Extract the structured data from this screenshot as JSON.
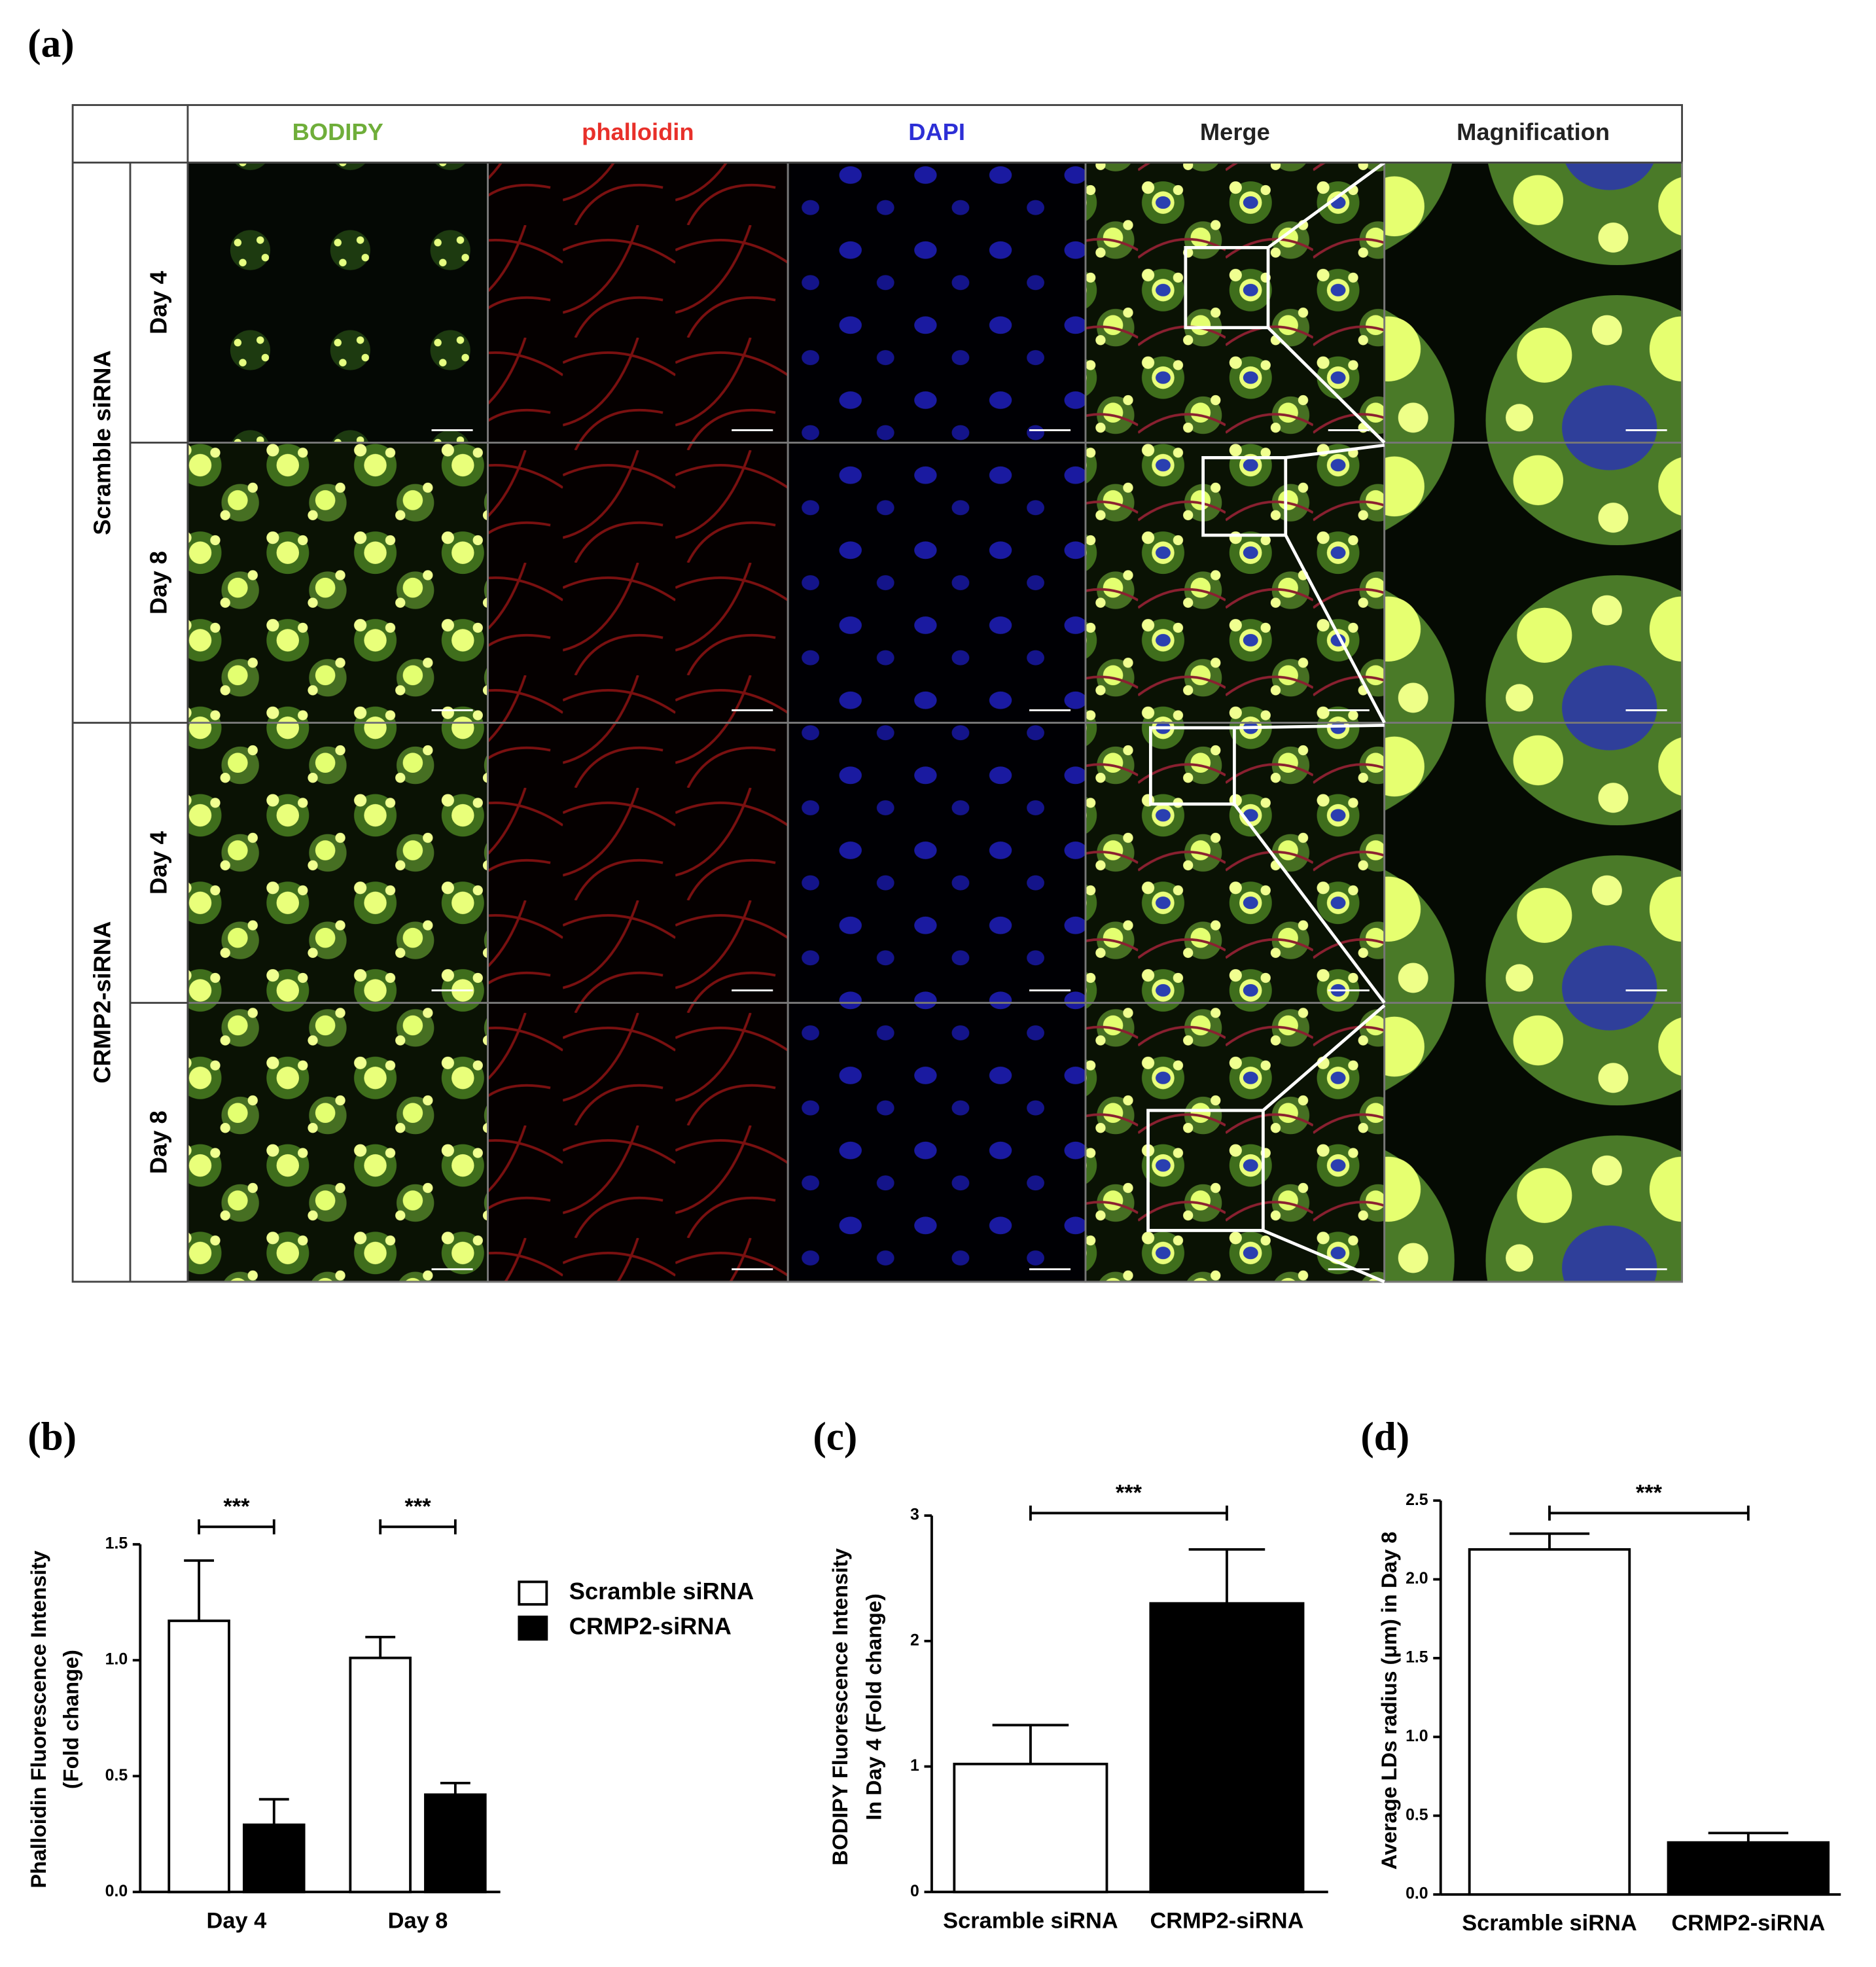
{
  "figure": {
    "panel_label": "(a)",
    "columns": [
      "BODIPY",
      "phalloidin",
      "DAPI",
      "Merge",
      "Magnification"
    ],
    "column_colors": [
      "#6fae3a",
      "#e8302a",
      "#2d2fd6",
      "#222222",
      "#222222"
    ],
    "groups": [
      {
        "name": "Scramble siRNA",
        "rows": [
          "Day 4",
          "Day 8"
        ]
      },
      {
        "name": "CRMP2-siRNA",
        "rows": [
          "Day 4",
          "Day 8"
        ]
      }
    ]
  },
  "chart_data": [
    {
      "type": "bar",
      "panel_label": "(b)",
      "ylabel": [
        "Phalloidin Fluorescence Intensity",
        "(Fold change)"
      ],
      "categories": [
        "Day 4",
        "Day 8"
      ],
      "series": [
        {
          "name": "Scramble siRNA",
          "color": "#ffffff",
          "values": [
            1.17,
            1.01
          ],
          "errors": [
            0.26,
            0.09
          ]
        },
        {
          "name": "CRMP2-siRNA",
          "color": "#000000",
          "values": [
            0.29,
            0.42
          ],
          "errors": [
            0.11,
            0.05
          ]
        }
      ],
      "ylim": [
        0,
        1.5
      ],
      "yticks": [
        {
          "value": 0,
          "label": "0.0"
        },
        0.5,
        {
          "value": 1,
          "label": "1.0"
        },
        1.5
      ],
      "annotations": [
        "***",
        "***"
      ],
      "legend": "right"
    },
    {
      "type": "bar",
      "panel_label": "(c)",
      "ylabel": [
        "BODIPY Fluorescence Intensity",
        "In Day 4 (Fold change)"
      ],
      "categories": [
        "Scramble siRNA",
        "CRMP2-siRNA"
      ],
      "colors": [
        "#ffffff",
        "#000000"
      ],
      "values": [
        1.02,
        2.3
      ],
      "errors": [
        0.31,
        0.43
      ],
      "ylim": [
        0,
        3
      ],
      "yticks": [
        0,
        1,
        2,
        3
      ],
      "annotations": [
        "***"
      ]
    },
    {
      "type": "bar",
      "panel_label": "(d)",
      "ylabel": [
        "Average LDs radius (μm) in Day 8"
      ],
      "categories": [
        "Scramble siRNA",
        "CRMP2-siRNA"
      ],
      "colors": [
        "#ffffff",
        "#000000"
      ],
      "values": [
        2.19,
        0.33
      ],
      "errors": [
        0.1,
        0.06
      ],
      "ylim": [
        0,
        2.5
      ],
      "yticks": [
        {
          "value": 0,
          "label": "0.0"
        },
        0.5,
        {
          "value": 1,
          "label": "1.0"
        },
        1.5,
        {
          "value": 2,
          "label": "2.0"
        },
        2.5
      ],
      "annotations": [
        "***"
      ]
    }
  ]
}
